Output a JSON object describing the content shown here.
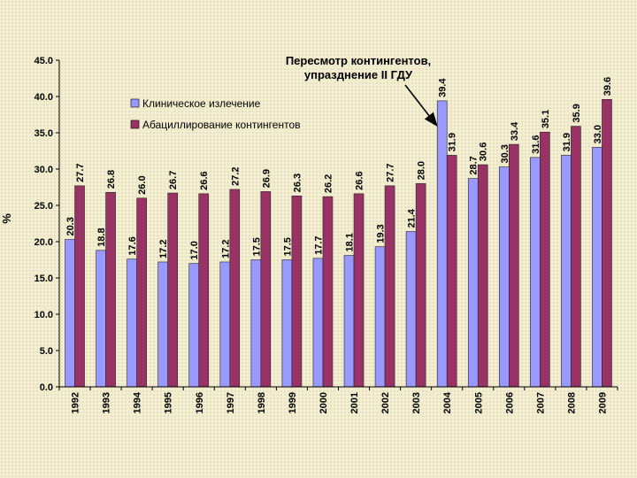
{
  "chart_data": {
    "type": "bar",
    "title": "",
    "xlabel": "",
    "ylabel": "%",
    "ylim": [
      0,
      45
    ],
    "yticks": [
      "0.0",
      "5.0",
      "10.0",
      "15.0",
      "20.0",
      "25.0",
      "30.0",
      "35.0",
      "40.0",
      "45.0"
    ],
    "grid": false,
    "legend_position": "top-left",
    "categories": [
      "1992",
      "1993",
      "1994",
      "1995",
      "1996",
      "1997",
      "1998",
      "1999",
      "2000",
      "2001",
      "2002",
      "2003",
      "2004",
      "2005",
      "2006",
      "2007",
      "2008",
      "2009"
    ],
    "series": [
      {
        "name": "Клиническое излечение",
        "color": "#9999ff",
        "values": [
          20.3,
          18.8,
          17.6,
          17.2,
          17.0,
          17.2,
          17.5,
          17.5,
          17.7,
          18.1,
          19.3,
          21.4,
          39.4,
          28.7,
          30.3,
          31.6,
          31.9,
          33.0
        ],
        "labels": [
          "20.3",
          "18.8",
          "17.6",
          "17.2",
          "17.0",
          "17.2",
          "17.5",
          "17.5",
          "17.7",
          "18.1",
          "19.3",
          "21.4",
          "39.4",
          "28.7",
          "30.3",
          "31.6",
          "31.9",
          "33.0"
        ]
      },
      {
        "name": "Абациллирование контингентов",
        "color": "#993366",
        "values": [
          27.7,
          26.8,
          26.0,
          26.7,
          26.6,
          27.2,
          26.9,
          26.3,
          26.2,
          26.6,
          27.7,
          28.0,
          31.9,
          30.6,
          33.4,
          35.1,
          35.9,
          39.6
        ],
        "labels": [
          "27.7",
          "26.8",
          "26.0",
          "26.7",
          "26.6",
          "27.2",
          "26.9",
          "26.3",
          "26.2",
          "26.6",
          "27.7",
          "28.0",
          "31.9",
          "30.6",
          "33.4",
          "35.1",
          "35.9",
          "39.6"
        ]
      }
    ],
    "annotations": [
      {
        "lines": [
          "Пересмотр контингентов,",
          "упразднение II ГДУ"
        ],
        "arrow_to_category": "2004"
      }
    ]
  }
}
